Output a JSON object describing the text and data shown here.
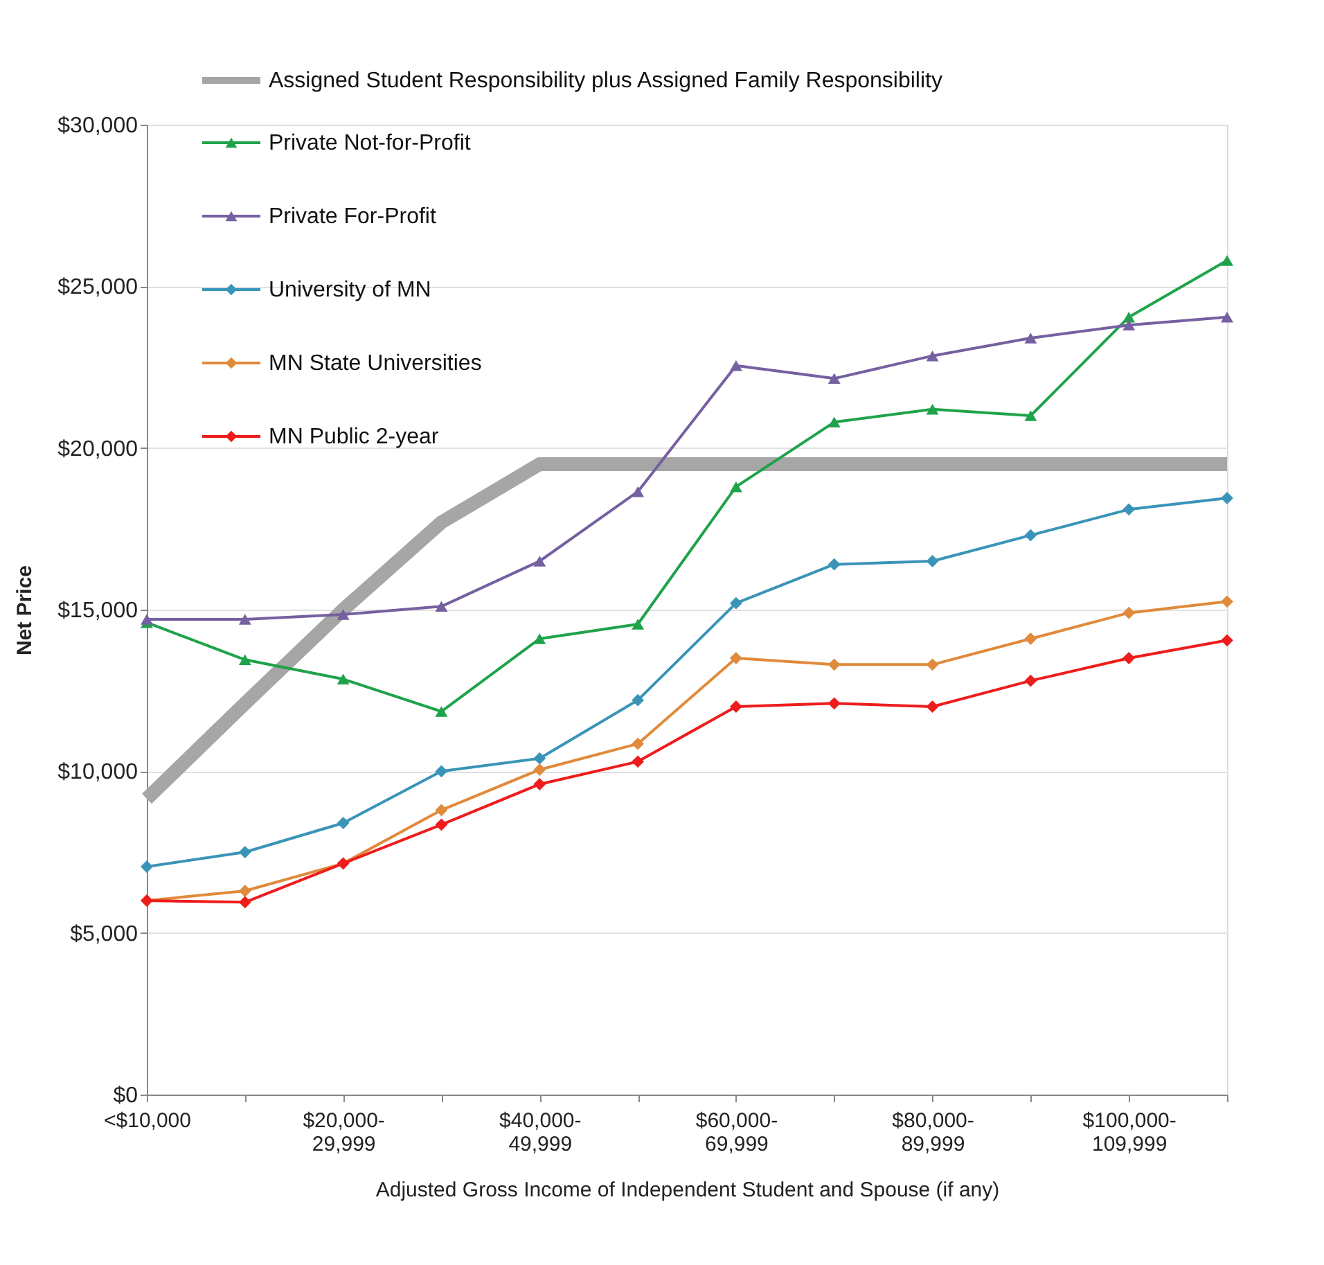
{
  "chart_data": {
    "type": "line",
    "categories": [
      "<$10,000",
      null,
      "$20,000-29,999",
      null,
      "$40,000-49,999",
      null,
      "$60,000-69,999",
      null,
      "$80,000-89,999",
      null,
      "$100,000-109,999",
      null
    ],
    "xlabel": "Adjusted Gross Income of Independent Student and Spouse (if any)",
    "ylabel": "Net Price",
    "ylim": [
      0,
      30000
    ],
    "yticks": [
      {
        "value": 0,
        "label": "$0"
      },
      {
        "value": 5000,
        "label": "$5,000"
      },
      {
        "value": 10000,
        "label": "$10,000"
      },
      {
        "value": 15000,
        "label": "$15,000"
      },
      {
        "value": 20000,
        "label": "$20,000"
      },
      {
        "value": 25000,
        "label": "$25,000"
      },
      {
        "value": 30000,
        "label": "$30,000"
      }
    ],
    "grid": "y",
    "legend": "top left",
    "line_style": "solid",
    "series": [
      {
        "name": "Assigned Student Responsibility plus Assigned Family Responsibility",
        "color": "#a6a6a6",
        "marker": "none",
        "values": [
          9150,
          12100,
          15000,
          17700,
          19500,
          19500,
          19500,
          19500,
          19500,
          19500,
          19500,
          19500
        ]
      },
      {
        "name": "Private Not-for-Profit",
        "color": "#1fa34a",
        "marker": "triangle",
        "values": [
          14600,
          13450,
          12850,
          11850,
          14100,
          14550,
          18800,
          20800,
          21200,
          21000,
          24050,
          25800
        ]
      },
      {
        "name": "Private For-Profit",
        "color": "#7560a0",
        "marker": "triangle",
        "values": [
          14700,
          14700,
          14850,
          15100,
          16500,
          18650,
          22550,
          22150,
          22850,
          23400,
          23800,
          24050
        ]
      },
      {
        "name": "University of MN",
        "color": "#3a94b8",
        "marker": "diamond",
        "values": [
          7050,
          7500,
          8400,
          10000,
          10400,
          12200,
          15200,
          16400,
          16500,
          17300,
          18100,
          18450
        ]
      },
      {
        "name": "MN State Universities",
        "color": "#e08a3c",
        "marker": "diamond",
        "values": [
          6000,
          6300,
          7150,
          8800,
          10050,
          10850,
          13500,
          13300,
          13300,
          14100,
          14900,
          15250
        ]
      },
      {
        "name": "MN Public 2-year",
        "color": "#ee1c1c",
        "marker": "diamond",
        "values": [
          6000,
          5950,
          7150,
          8350,
          9600,
          10300,
          12000,
          12100,
          12000,
          12800,
          13500,
          14050
        ]
      }
    ]
  }
}
